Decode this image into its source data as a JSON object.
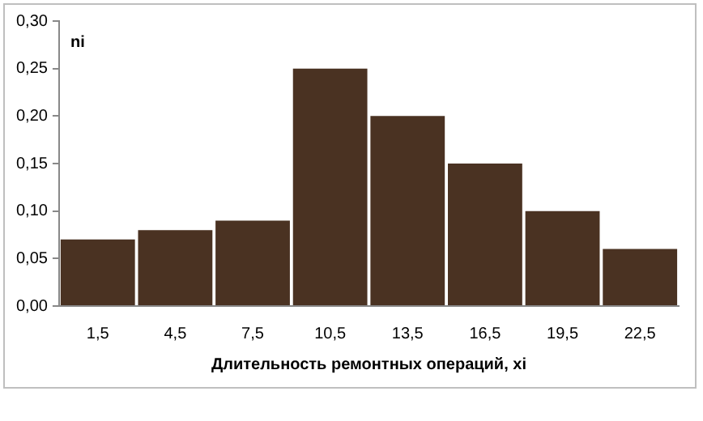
{
  "chart_data": {
    "type": "bar",
    "ylabel": "ni",
    "xlabel": "Длительность ремонтных операций, хi",
    "categories": [
      "1,5",
      "4,5",
      "7,5",
      "10,5",
      "13,5",
      "16,5",
      "19,5",
      "22,5"
    ],
    "values": [
      0.07,
      0.08,
      0.09,
      0.25,
      0.2,
      0.15,
      0.1,
      0.06
    ],
    "color": "#4a3222",
    "ylim": [
      0,
      0.3
    ],
    "yticks": [
      {
        "value": 0,
        "label": "0,00"
      },
      {
        "value": 0.05,
        "label": "0,05"
      },
      {
        "value": 0.1,
        "label": "0,10"
      },
      {
        "value": 0.15,
        "label": "0,15"
      },
      {
        "value": 0.2,
        "label": "0,20"
      },
      {
        "value": 0.25,
        "label": "0,25"
      },
      {
        "value": 0.3,
        "label": "0,30"
      }
    ],
    "grid": false
  }
}
